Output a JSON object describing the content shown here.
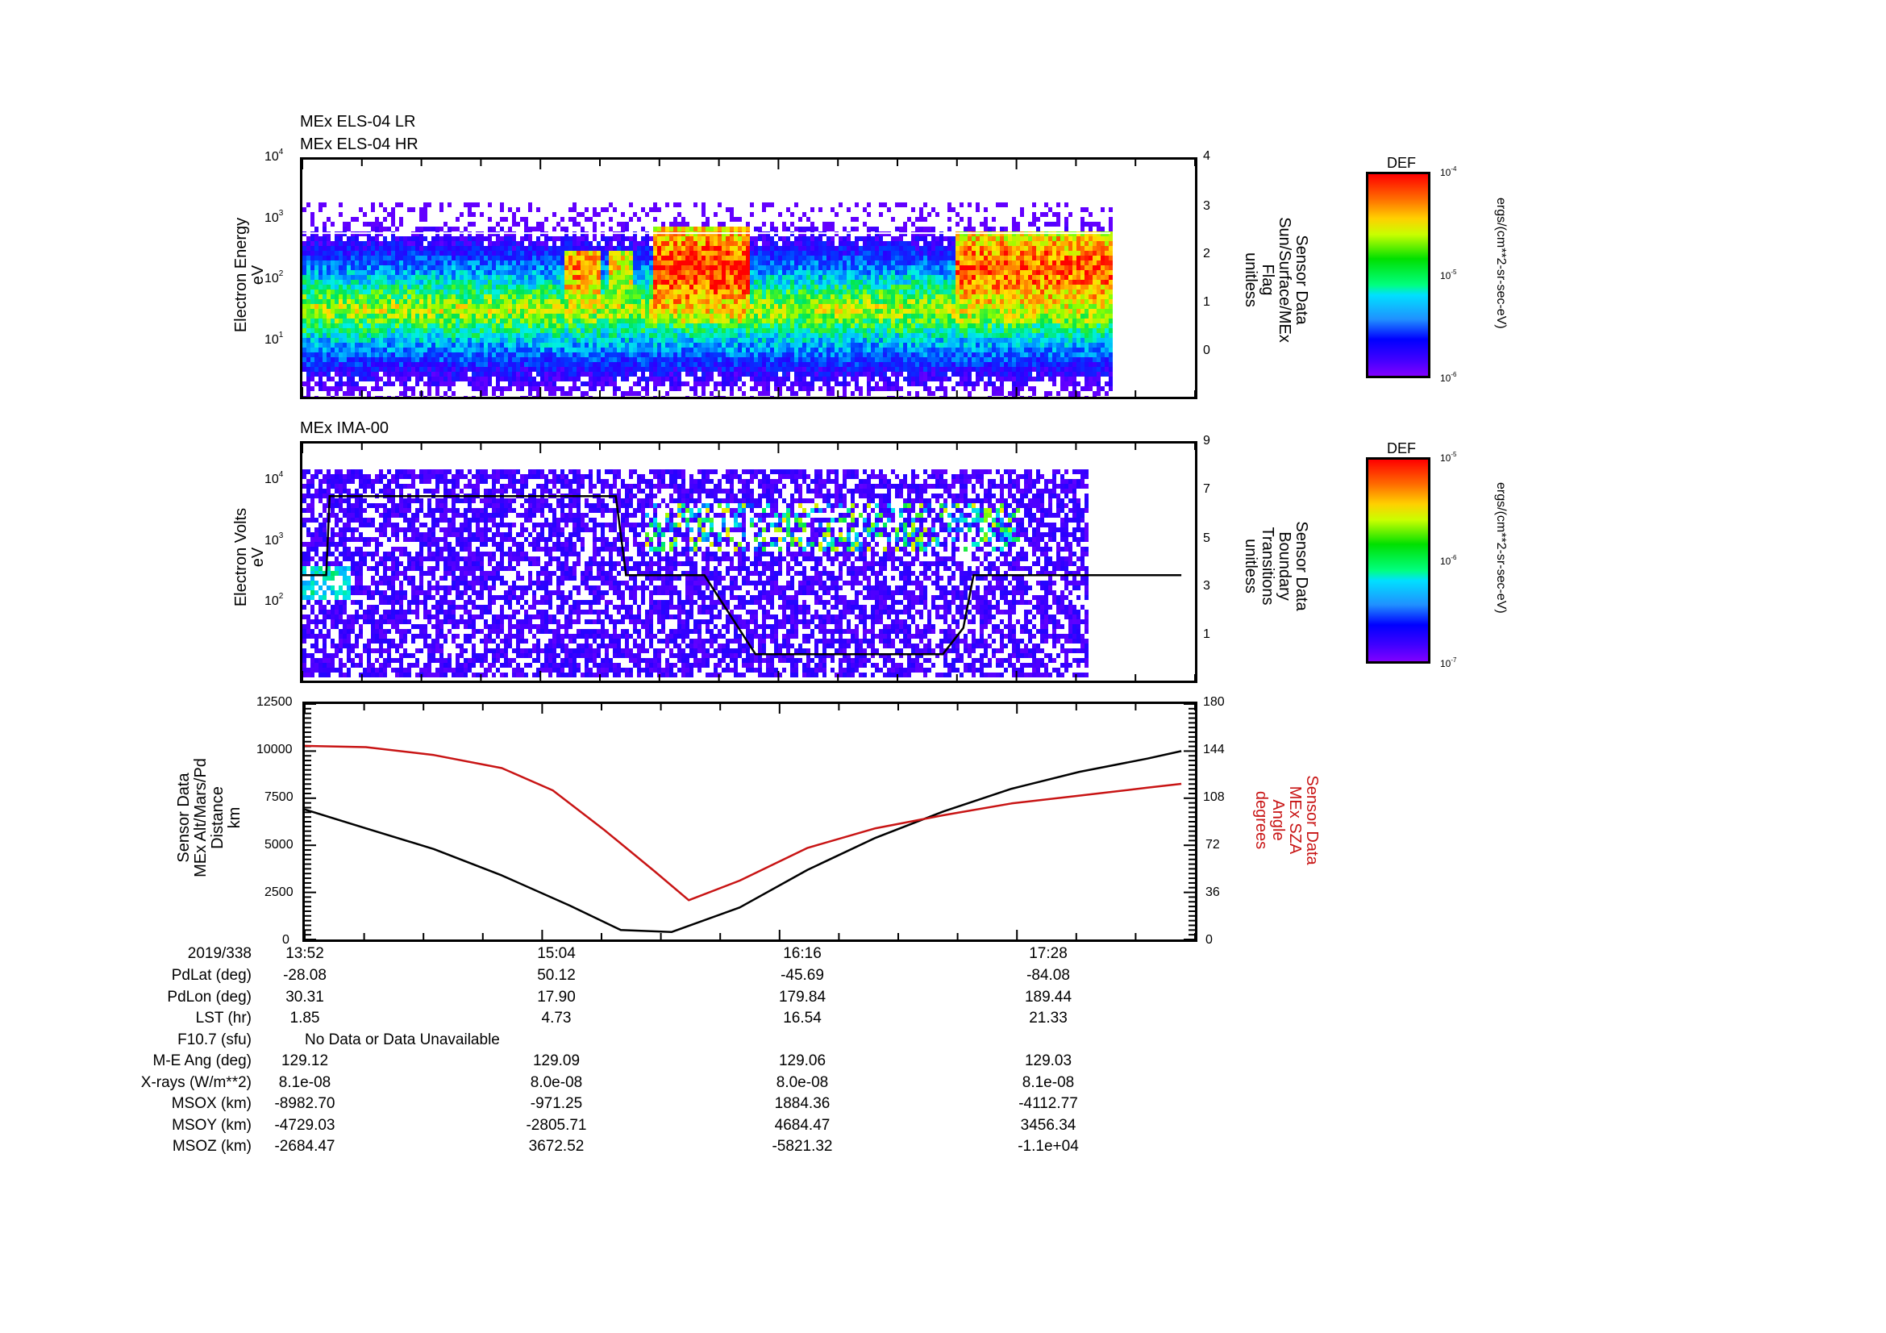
{
  "panel1": {
    "titles": [
      "MEx ELS-04 LR",
      "MEx ELS-04 HR"
    ],
    "ylabel": [
      "Electron Energy",
      "eV"
    ],
    "yticks": [
      "10",
      "10",
      "10",
      "10"
    ],
    "ytick_exp": [
      "4",
      "3",
      "2",
      "1"
    ],
    "right_ylabel": [
      "Sensor Data",
      "Sun/Surface/MEx",
      "Flag",
      "unitless"
    ],
    "right_yticks": [
      "4",
      "3",
      "2",
      "1",
      "0"
    ],
    "colorbar": {
      "title": "DEF",
      "ticks": [
        "10",
        "10",
        "10"
      ],
      "tick_exp": [
        "-4",
        "-5",
        "-6"
      ],
      "units": "ergs/(cm**2-sr-sec-eV)"
    }
  },
  "panel2": {
    "title": "MEx IMA-00",
    "ylabel": [
      "Electron Volts",
      "eV"
    ],
    "yticks": [
      "10",
      "10",
      "10"
    ],
    "ytick_exp": [
      "4",
      "3",
      "2"
    ],
    "right_ylabel": [
      "Sensor Data",
      "Boundary",
      "Transitions",
      "unitless"
    ],
    "right_yticks": [
      "9",
      "7",
      "5",
      "3",
      "1"
    ],
    "colorbar": {
      "title": "DEF",
      "ticks": [
        "10",
        "10",
        "10"
      ],
      "tick_exp": [
        "-5",
        "-6",
        "-7"
      ],
      "units": "ergs/(cm**2-sr-sec-eV)"
    }
  },
  "panel3": {
    "ylabel": [
      "Sensor Data",
      "MEx Alt/Mars/Pd",
      "Distance",
      "km"
    ],
    "yticks": [
      "12500",
      "10000",
      "7500",
      "5000",
      "2500",
      "0"
    ],
    "right_ylabel": [
      "Sensor Data",
      "MEx SZA",
      "Angle",
      "degrees"
    ],
    "right_yticks": [
      "180",
      "144",
      "108",
      "72",
      "36",
      "0"
    ]
  },
  "table": {
    "header_label": "2019/338",
    "times": [
      "13:52",
      "15:04",
      "16:16",
      "17:28"
    ],
    "rows": [
      {
        "label": "PdLat (deg)",
        "values": [
          "-28.08",
          "50.12",
          "-45.69",
          "-84.08"
        ]
      },
      {
        "label": "PdLon (deg)",
        "values": [
          "30.31",
          "17.90",
          "179.84",
          "189.44"
        ]
      },
      {
        "label": "LST (hr)",
        "values": [
          "1.85",
          "4.73",
          "16.54",
          "21.33"
        ]
      },
      {
        "label": "F10.7 (sfu)",
        "note": "No Data or Data Unavailable"
      },
      {
        "label": "M-E Ang (deg)",
        "values": [
          "129.12",
          "129.09",
          "129.06",
          "129.03"
        ]
      },
      {
        "label": "X-rays (W/m**2)",
        "values": [
          "8.1e-08",
          "8.0e-08",
          "8.0e-08",
          "8.1e-08"
        ]
      },
      {
        "label": "MSOX (km)",
        "values": [
          "-8982.70",
          "-971.25",
          "1884.36",
          "-4112.77"
        ]
      },
      {
        "label": "MSOY (km)",
        "values": [
          "-4729.03",
          "-2805.71",
          "4684.47",
          "3456.34"
        ]
      },
      {
        "label": "MSOZ (km)",
        "values": [
          "-2684.47",
          "3672.52",
          "-5821.32",
          "-1.1e+04"
        ]
      }
    ]
  },
  "colors": {
    "altitude_line": "#000000",
    "sza_line": "#c81414",
    "boundary_line": "#000000"
  },
  "chart_data": [
    {
      "type": "heatmap",
      "title": "MEx ELS-04 LR / MEx ELS-04 HR",
      "ylabel": "Electron Energy (eV)",
      "yscale": "log",
      "ylim": [
        1,
        10000
      ],
      "xlabel": "2019/338",
      "x_ticks": [
        "13:52",
        "15:04",
        "16:16",
        "17:28"
      ],
      "colorbar": {
        "label": "DEF ergs/(cm**2-sr-sec-eV)",
        "range": [
          1e-06,
          0.0001
        ],
        "scale": "log"
      },
      "right_axis": {
        "label": "Sensor Data Sun/Surface/MEx Flag (unitless)",
        "range": [
          -1,
          4
        ]
      },
      "description": "Persistent band at ~10-100 eV; intense red patches near 15:10-15:30 and 15:40-16:00, and from ~16:55 to 17:50 at ~20-100 eV; data ends ~17:52"
    },
    {
      "type": "heatmap",
      "title": "MEx IMA-00",
      "ylabel": "Electron Volts (eV)",
      "yscale": "log",
      "ylim": [
        30,
        30000
      ],
      "x_ticks": [
        "13:52",
        "15:04",
        "16:16",
        "17:28"
      ],
      "colorbar": {
        "label": "DEF ergs/(cm**2-sr-sec-eV)",
        "range": [
          1e-07,
          1e-05
        ],
        "scale": "log"
      },
      "right_axis": {
        "label": "Sensor Data Boundary Transitions (unitless)",
        "range": [
          0,
          9
        ]
      },
      "boundary_transitions": {
        "x": [
          "13:52",
          "13:59",
          "14:00",
          "15:24",
          "15:27",
          "15:50",
          "16:05",
          "16:16",
          "17:00",
          "17:06",
          "17:09",
          "18:10"
        ],
        "y": [
          4,
          4,
          7,
          7,
          4,
          4,
          1,
          1,
          1,
          2,
          4,
          4
        ]
      }
    },
    {
      "type": "line",
      "x_ticks": [
        "13:52",
        "15:04",
        "16:16",
        "17:28"
      ],
      "xlabel": "2019/338",
      "series": [
        {
          "name": "MEx Alt/Mars/Pd Distance (km)",
          "axis": "left",
          "x": [
            "13:52",
            "14:10",
            "14:30",
            "14:50",
            "15:10",
            "15:25",
            "15:40",
            "16:00",
            "16:20",
            "16:40",
            "17:00",
            "17:20",
            "17:40",
            "18:00",
            "18:10"
          ],
          "y": [
            6900,
            5900,
            4800,
            3400,
            1800,
            500,
            400,
            1700,
            3700,
            5400,
            6800,
            8000,
            8900,
            9600,
            10000
          ]
        },
        {
          "name": "MEx SZA Angle (degrees)",
          "axis": "right",
          "x": [
            "13:52",
            "14:10",
            "14:30",
            "14:50",
            "15:05",
            "15:20",
            "15:35",
            "15:45",
            "16:00",
            "16:20",
            "16:40",
            "17:00",
            "17:20",
            "17:40",
            "18:00",
            "18:10"
          ],
          "y": [
            148,
            147,
            141,
            131,
            114,
            84,
            52,
            30,
            45,
            70,
            85,
            95,
            104,
            110,
            116,
            119
          ]
        }
      ],
      "ylim_left": [
        0,
        12500
      ],
      "ylim_right": [
        0,
        180
      ]
    }
  ]
}
